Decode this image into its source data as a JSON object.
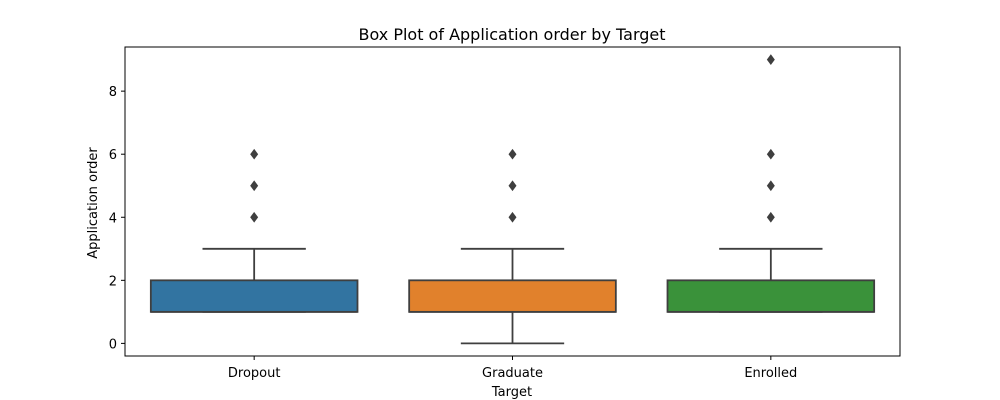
{
  "chart_data": {
    "type": "box",
    "title": "Box Plot of Application order by Target",
    "xlabel": "Target",
    "ylabel": "Application order",
    "categories": [
      "Dropout",
      "Graduate",
      "Enrolled"
    ],
    "ylim": [
      -0.4,
      9.4
    ],
    "yticks": [
      0,
      2,
      4,
      6,
      8
    ],
    "boxes": [
      {
        "category": "Dropout",
        "color": "#3274a1",
        "whisker_low": 1,
        "q1": 1,
        "median": 1,
        "q3": 2,
        "whisker_high": 3,
        "outliers": [
          4,
          5,
          6
        ]
      },
      {
        "category": "Graduate",
        "color": "#e1812c",
        "whisker_low": 0,
        "q1": 1,
        "median": 1,
        "q3": 2,
        "whisker_high": 3,
        "outliers": [
          4,
          5,
          6
        ]
      },
      {
        "category": "Enrolled",
        "color": "#3a923a",
        "whisker_low": 1,
        "q1": 1,
        "median": 1,
        "q3": 2,
        "whisker_high": 3,
        "outliers": [
          4,
          5,
          6,
          9
        ]
      }
    ],
    "grid": false,
    "legend": "none"
  }
}
